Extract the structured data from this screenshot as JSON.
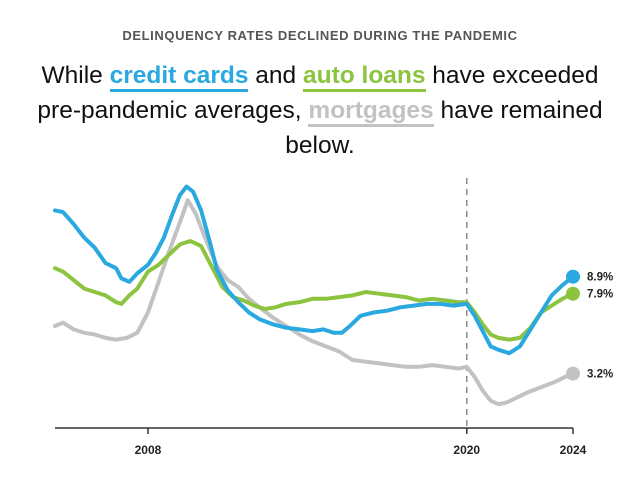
{
  "kicker": "DELINQUENCY RATES DECLINED DURING THE PANDEMIC",
  "headline": {
    "part1": "While ",
    "series1": "credit cards",
    "part2": " and ",
    "series2": "auto loans",
    "part3": " have exceeded pre-pandemic averages, ",
    "series3": "mortgages",
    "part4": " have remained below."
  },
  "colors": {
    "credit_cards": "#2aa8e0",
    "auto_loans": "#8cc43f",
    "mortgages": "#c2c2c2",
    "axis": "#333333",
    "marker_line": "#8a8a8a"
  },
  "chart_data": {
    "type": "line",
    "title": "",
    "xlabel": "",
    "ylabel": "",
    "x_ticks": [
      "2008",
      "2020",
      "2024"
    ],
    "xlim": [
      2004.5,
      2024
    ],
    "ylim": [
      0,
      16
    ],
    "grid": false,
    "reference_line": {
      "x": 2020,
      "style": "dashed"
    },
    "series": [
      {
        "key": "credit_cards",
        "end_label": "8.9%",
        "points": [
          [
            2004.5,
            12.8
          ],
          [
            2004.8,
            12.7
          ],
          [
            2005.2,
            12.0
          ],
          [
            2005.6,
            11.2
          ],
          [
            2006.0,
            10.6
          ],
          [
            2006.4,
            9.7
          ],
          [
            2006.8,
            9.4
          ],
          [
            2007.0,
            8.8
          ],
          [
            2007.3,
            8.6
          ],
          [
            2007.6,
            9.1
          ],
          [
            2008.0,
            9.6
          ],
          [
            2008.3,
            10.3
          ],
          [
            2008.6,
            11.2
          ],
          [
            2008.9,
            12.5
          ],
          [
            2009.2,
            13.7
          ],
          [
            2009.45,
            14.2
          ],
          [
            2009.7,
            13.9
          ],
          [
            2010.0,
            12.8
          ],
          [
            2010.3,
            11.1
          ],
          [
            2010.6,
            9.3
          ],
          [
            2011.0,
            8.1
          ],
          [
            2011.4,
            7.4
          ],
          [
            2011.8,
            6.8
          ],
          [
            2012.2,
            6.4
          ],
          [
            2012.7,
            6.1
          ],
          [
            2013.2,
            5.9
          ],
          [
            2013.7,
            5.8
          ],
          [
            2014.2,
            5.7
          ],
          [
            2014.6,
            5.8
          ],
          [
            2015.0,
            5.6
          ],
          [
            2015.3,
            5.6
          ],
          [
            2015.6,
            6.0
          ],
          [
            2016.0,
            6.6
          ],
          [
            2016.5,
            6.8
          ],
          [
            2017.0,
            6.9
          ],
          [
            2017.5,
            7.1
          ],
          [
            2018.0,
            7.2
          ],
          [
            2018.5,
            7.3
          ],
          [
            2019.0,
            7.3
          ],
          [
            2019.5,
            7.2
          ],
          [
            2020.0,
            7.3
          ],
          [
            2020.3,
            6.6
          ],
          [
            2020.6,
            5.7
          ],
          [
            2020.9,
            4.8
          ],
          [
            2021.2,
            4.6
          ],
          [
            2021.6,
            4.4
          ],
          [
            2022.0,
            4.8
          ],
          [
            2022.4,
            5.8
          ],
          [
            2022.8,
            6.8
          ],
          [
            2023.2,
            7.8
          ],
          [
            2023.6,
            8.4
          ],
          [
            2024.0,
            8.9
          ]
        ]
      },
      {
        "key": "auto_loans",
        "end_label": "7.9%",
        "points": [
          [
            2004.5,
            9.4
          ],
          [
            2004.8,
            9.2
          ],
          [
            2005.2,
            8.7
          ],
          [
            2005.6,
            8.2
          ],
          [
            2006.0,
            8.0
          ],
          [
            2006.4,
            7.8
          ],
          [
            2006.8,
            7.4
          ],
          [
            2007.0,
            7.3
          ],
          [
            2007.3,
            7.8
          ],
          [
            2007.6,
            8.2
          ],
          [
            2008.0,
            9.2
          ],
          [
            2008.4,
            9.6
          ],
          [
            2008.8,
            10.2
          ],
          [
            2009.2,
            10.8
          ],
          [
            2009.6,
            11.0
          ],
          [
            2010.0,
            10.7
          ],
          [
            2010.4,
            9.5
          ],
          [
            2010.8,
            8.3
          ],
          [
            2011.2,
            7.7
          ],
          [
            2011.6,
            7.5
          ],
          [
            2012.0,
            7.2
          ],
          [
            2012.4,
            7.0
          ],
          [
            2012.8,
            7.1
          ],
          [
            2013.2,
            7.3
          ],
          [
            2013.7,
            7.4
          ],
          [
            2014.2,
            7.6
          ],
          [
            2014.7,
            7.6
          ],
          [
            2015.2,
            7.7
          ],
          [
            2015.7,
            7.8
          ],
          [
            2016.2,
            8.0
          ],
          [
            2016.7,
            7.9
          ],
          [
            2017.2,
            7.8
          ],
          [
            2017.7,
            7.7
          ],
          [
            2018.2,
            7.5
          ],
          [
            2018.7,
            7.6
          ],
          [
            2019.2,
            7.5
          ],
          [
            2019.7,
            7.4
          ],
          [
            2020.0,
            7.4
          ],
          [
            2020.3,
            6.8
          ],
          [
            2020.6,
            6.1
          ],
          [
            2020.9,
            5.5
          ],
          [
            2021.2,
            5.3
          ],
          [
            2021.6,
            5.2
          ],
          [
            2022.0,
            5.3
          ],
          [
            2022.4,
            5.9
          ],
          [
            2022.8,
            6.8
          ],
          [
            2023.2,
            7.2
          ],
          [
            2023.6,
            7.6
          ],
          [
            2024.0,
            7.9
          ]
        ]
      },
      {
        "key": "mortgages",
        "end_label": "3.2%",
        "points": [
          [
            2004.5,
            6.0
          ],
          [
            2004.8,
            6.2
          ],
          [
            2005.2,
            5.8
          ],
          [
            2005.6,
            5.6
          ],
          [
            2006.0,
            5.5
          ],
          [
            2006.4,
            5.3
          ],
          [
            2006.8,
            5.2
          ],
          [
            2007.2,
            5.3
          ],
          [
            2007.6,
            5.6
          ],
          [
            2008.0,
            6.8
          ],
          [
            2008.4,
            8.6
          ],
          [
            2008.8,
            10.4
          ],
          [
            2009.2,
            12.1
          ],
          [
            2009.5,
            13.4
          ],
          [
            2009.8,
            12.6
          ],
          [
            2010.2,
            11.0
          ],
          [
            2010.6,
            9.5
          ],
          [
            2011.0,
            8.7
          ],
          [
            2011.4,
            8.3
          ],
          [
            2011.8,
            7.6
          ],
          [
            2012.2,
            7.1
          ],
          [
            2012.7,
            6.5
          ],
          [
            2013.2,
            6.0
          ],
          [
            2013.7,
            5.5
          ],
          [
            2014.2,
            5.1
          ],
          [
            2014.7,
            4.8
          ],
          [
            2015.2,
            4.5
          ],
          [
            2015.7,
            4.0
          ],
          [
            2016.2,
            3.9
          ],
          [
            2016.7,
            3.8
          ],
          [
            2017.2,
            3.7
          ],
          [
            2017.7,
            3.6
          ],
          [
            2018.2,
            3.6
          ],
          [
            2018.7,
            3.7
          ],
          [
            2019.2,
            3.6
          ],
          [
            2019.7,
            3.5
          ],
          [
            2020.0,
            3.6
          ],
          [
            2020.3,
            3.0
          ],
          [
            2020.6,
            2.2
          ],
          [
            2020.9,
            1.6
          ],
          [
            2021.2,
            1.4
          ],
          [
            2021.5,
            1.5
          ],
          [
            2021.9,
            1.8
          ],
          [
            2022.3,
            2.1
          ],
          [
            2022.8,
            2.4
          ],
          [
            2023.3,
            2.7
          ],
          [
            2023.7,
            3.0
          ],
          [
            2024.0,
            3.2
          ]
        ]
      }
    ]
  }
}
